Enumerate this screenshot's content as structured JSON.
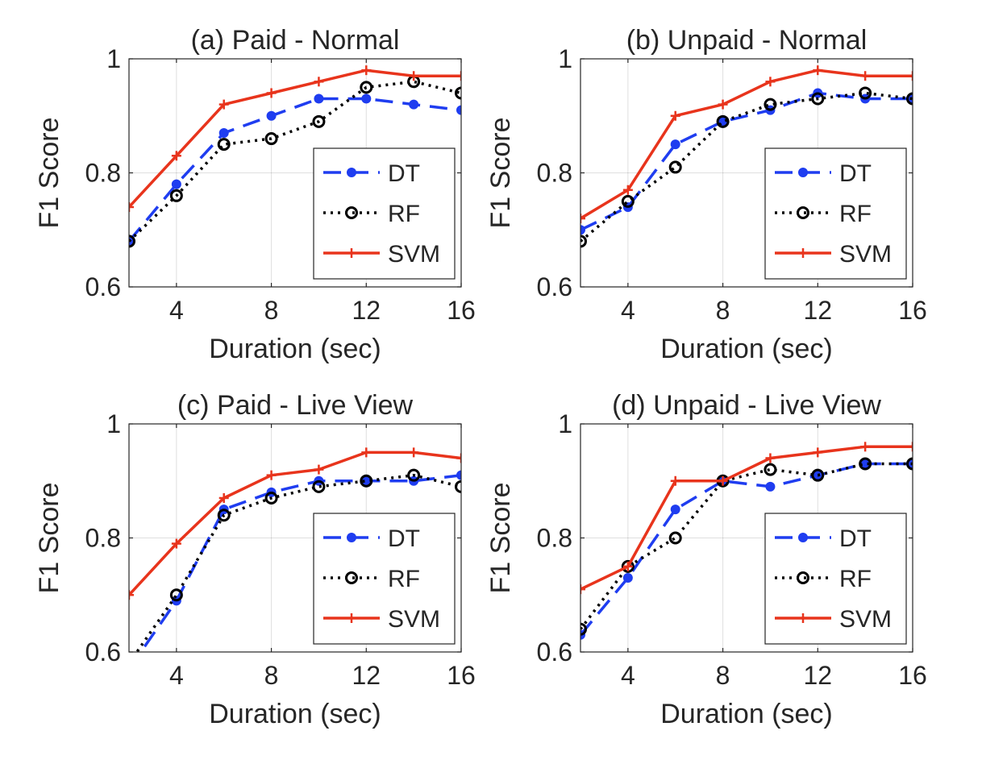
{
  "colors": {
    "DT": "#1f3df0",
    "RF": "#000000",
    "SVM": "#e8341c",
    "axis": "#262626",
    "grid": "#262626"
  },
  "chart_data": [
    {
      "type": "line",
      "title": "(a) Paid - Normal",
      "xlabel": "Duration (sec)",
      "ylabel": "F1 Score",
      "xlim": [
        2,
        16
      ],
      "ylim": [
        0.6,
        1
      ],
      "xticks": [
        4,
        8,
        12,
        16
      ],
      "xtick_labels": [
        "4",
        "8",
        "12",
        "16"
      ],
      "yticks": [
        0.6,
        0.8,
        1
      ],
      "ytick_labels": [
        "0.6",
        "0.8",
        "1"
      ],
      "legend": "bottom-right",
      "x": [
        2,
        4,
        6,
        8,
        10,
        12,
        14,
        16
      ],
      "series": [
        {
          "name": "DT",
          "values": [
            0.68,
            0.78,
            0.87,
            0.9,
            0.93,
            0.93,
            0.92,
            0.91
          ]
        },
        {
          "name": "RF",
          "values": [
            0.68,
            0.76,
            0.85,
            0.86,
            0.89,
            0.95,
            0.96,
            0.94
          ]
        },
        {
          "name": "SVM",
          "values": [
            0.74,
            0.83,
            0.92,
            0.94,
            0.96,
            0.98,
            0.97,
            0.97
          ]
        }
      ]
    },
    {
      "type": "line",
      "title": "(b) Unpaid - Normal",
      "xlabel": "Duration (sec)",
      "ylabel": "F1 Score",
      "xlim": [
        2,
        16
      ],
      "ylim": [
        0.6,
        1
      ],
      "xticks": [
        4,
        8,
        12,
        16
      ],
      "xtick_labels": [
        "4",
        "8",
        "12",
        "16"
      ],
      "yticks": [
        0.6,
        0.8,
        1
      ],
      "ytick_labels": [
        "0.6",
        "0.8",
        "1"
      ],
      "legend": "bottom-right",
      "x": [
        2,
        4,
        6,
        8,
        10,
        12,
        14,
        16
      ],
      "series": [
        {
          "name": "DT",
          "values": [
            0.7,
            0.74,
            0.85,
            0.89,
            0.91,
            0.94,
            0.93,
            0.93
          ]
        },
        {
          "name": "RF",
          "values": [
            0.68,
            0.75,
            0.81,
            0.89,
            0.92,
            0.93,
            0.94,
            0.93
          ]
        },
        {
          "name": "SVM",
          "values": [
            0.72,
            0.77,
            0.9,
            0.92,
            0.96,
            0.98,
            0.97,
            0.97
          ]
        }
      ]
    },
    {
      "type": "line",
      "title": "(c) Paid - Live View",
      "xlabel": "Duration (sec)",
      "ylabel": "F1 Score",
      "xlim": [
        2,
        16
      ],
      "ylim": [
        0.6,
        1
      ],
      "xticks": [
        4,
        8,
        12,
        16
      ],
      "xtick_labels": [
        "4",
        "8",
        "12",
        "16"
      ],
      "yticks": [
        0.6,
        0.8,
        1
      ],
      "ytick_labels": [
        "0.6",
        "0.8",
        "1"
      ],
      "legend": "bottom-right",
      "x": [
        2,
        4,
        6,
        8,
        10,
        12,
        14,
        16
      ],
      "series": [
        {
          "name": "DT",
          "values": [
            0.57,
            0.69,
            0.85,
            0.88,
            0.9,
            0.9,
            0.9,
            0.91
          ]
        },
        {
          "name": "RF",
          "values": [
            0.58,
            0.7,
            0.84,
            0.87,
            0.89,
            0.9,
            0.91,
            0.89
          ]
        },
        {
          "name": "SVM",
          "values": [
            0.7,
            0.79,
            0.87,
            0.91,
            0.92,
            0.95,
            0.95,
            0.94
          ]
        }
      ]
    },
    {
      "type": "line",
      "title": "(d) Unpaid - Live View",
      "xlabel": "Duration (sec)",
      "ylabel": "F1 Score",
      "xlim": [
        2,
        16
      ],
      "ylim": [
        0.6,
        1
      ],
      "xticks": [
        4,
        8,
        12,
        16
      ],
      "xtick_labels": [
        "4",
        "8",
        "12",
        "16"
      ],
      "yticks": [
        0.6,
        0.8,
        1
      ],
      "ytick_labels": [
        "0.6",
        "0.8",
        "1"
      ],
      "legend": "bottom-right",
      "x": [
        2,
        4,
        6,
        8,
        10,
        12,
        14,
        16
      ],
      "series": [
        {
          "name": "DT",
          "values": [
            0.63,
            0.73,
            0.85,
            0.9,
            0.89,
            0.91,
            0.93,
            0.93
          ]
        },
        {
          "name": "RF",
          "values": [
            0.64,
            0.75,
            0.8,
            0.9,
            0.92,
            0.91,
            0.93,
            0.93
          ]
        },
        {
          "name": "SVM",
          "values": [
            0.71,
            0.75,
            0.9,
            0.9,
            0.94,
            0.95,
            0.96,
            0.96
          ]
        }
      ]
    }
  ]
}
